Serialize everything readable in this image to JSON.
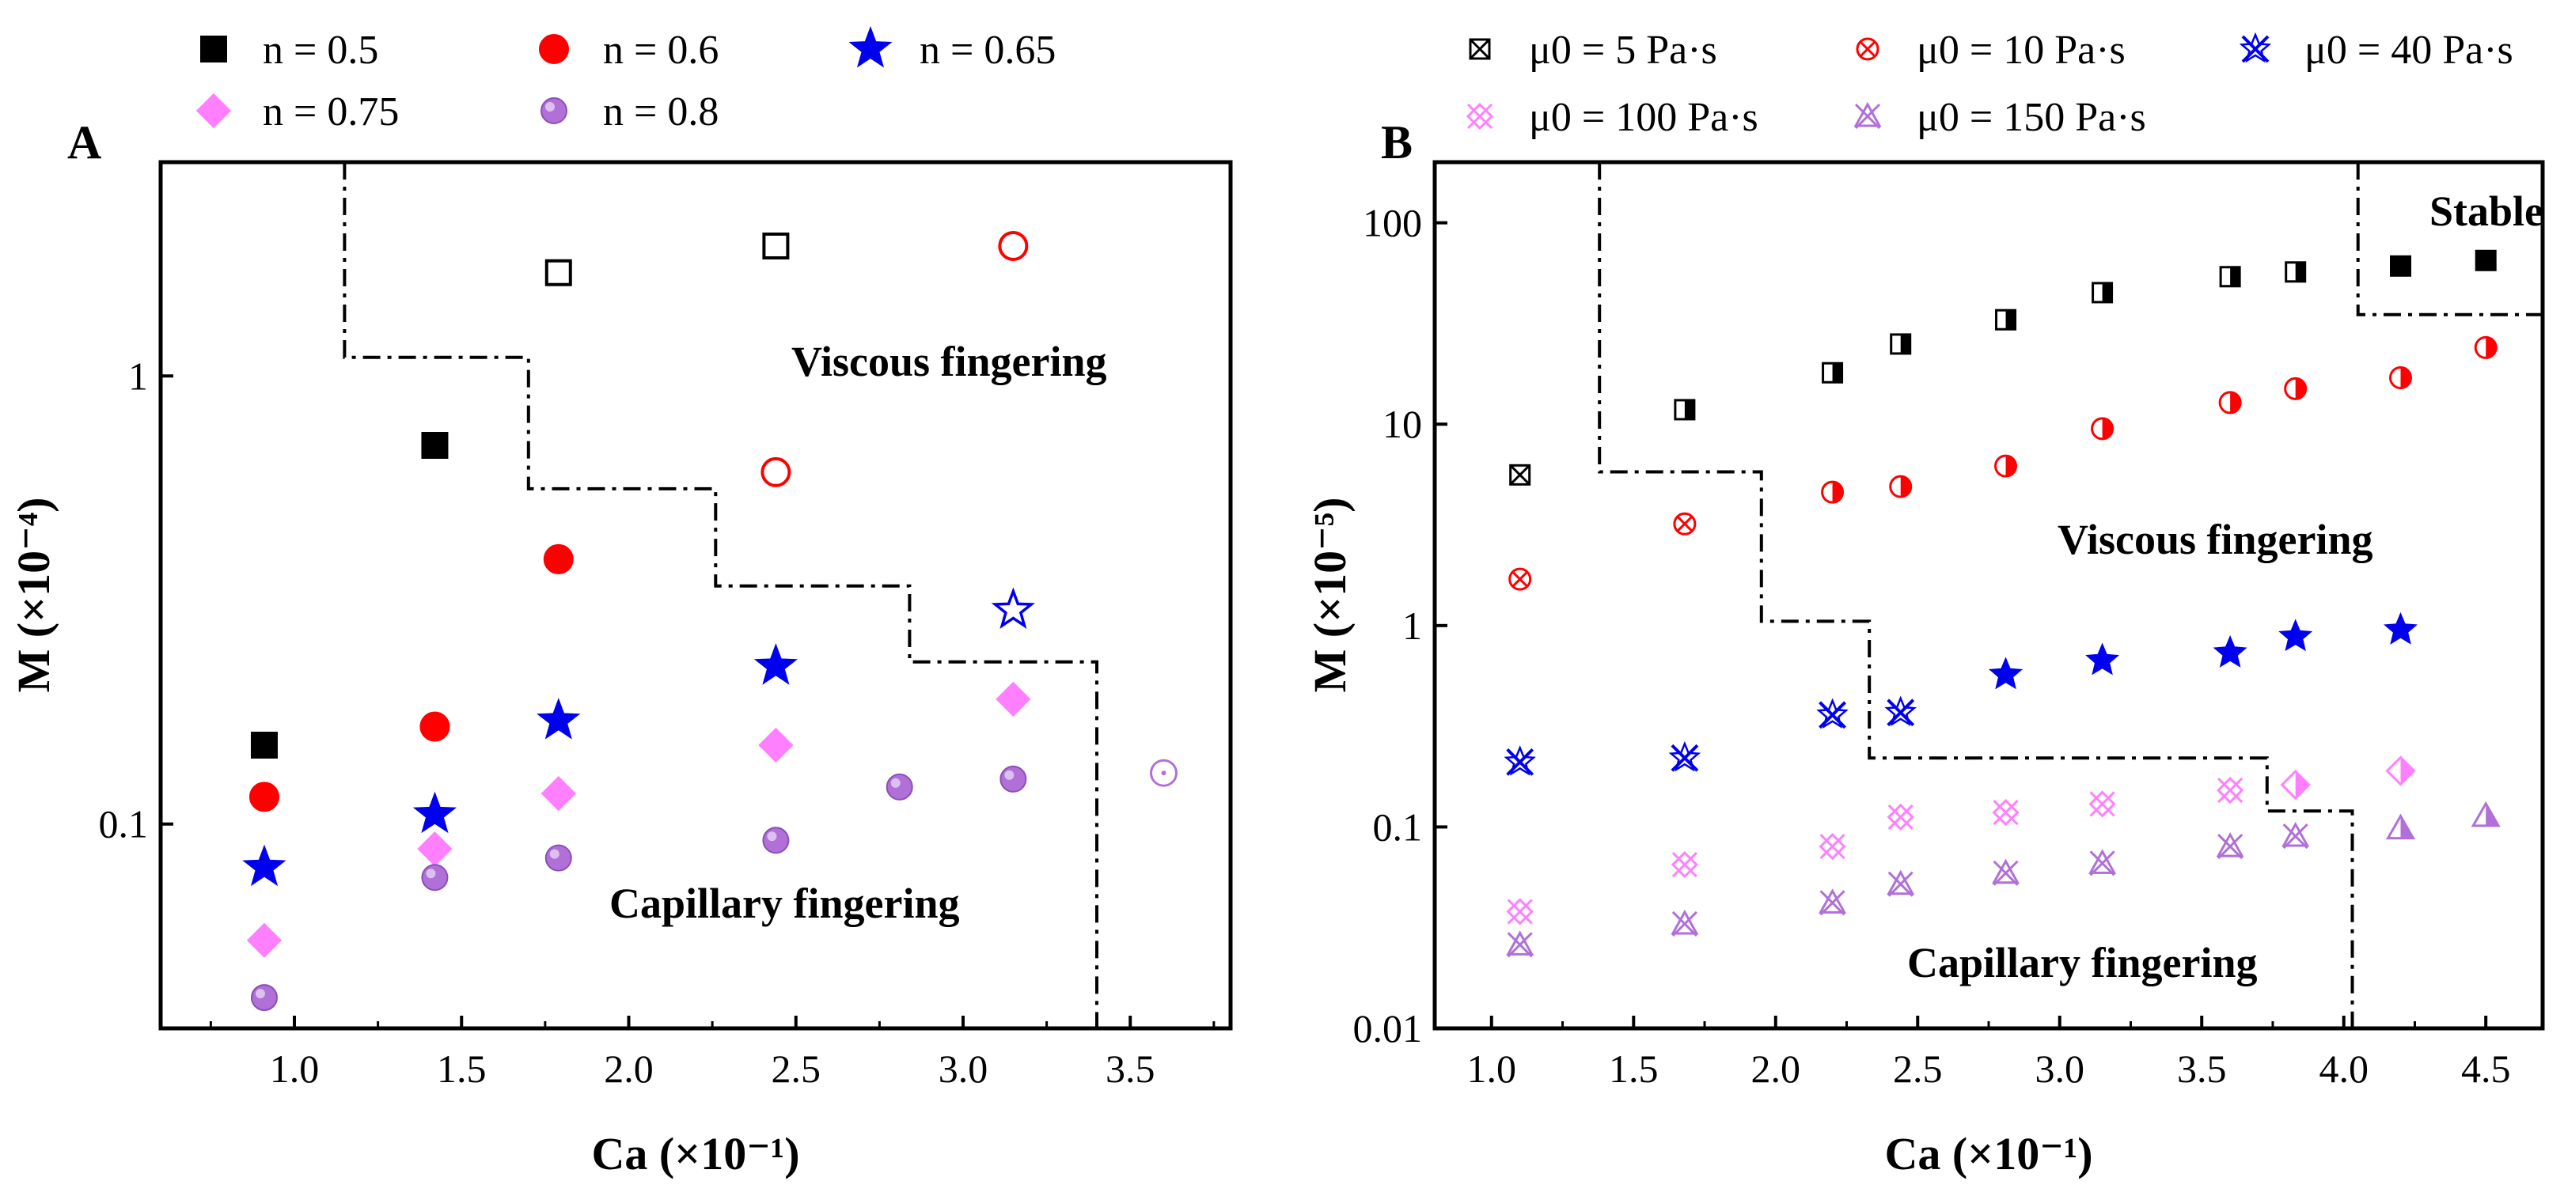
{
  "chart_data": [
    {
      "type": "scatter",
      "panel": "A",
      "xlabel": "Ca (×10⁻¹)",
      "ylabel": "M (×10⁻⁴)",
      "xlim": [
        0.6,
        3.8
      ],
      "ylim": [
        0.035,
        3.0
      ],
      "yscale": "log",
      "x_ticks": [
        "1.0",
        "1.5",
        "2.0",
        "2.5",
        "3.0",
        "3.5"
      ],
      "y_ticks": [
        "0.1",
        "1"
      ],
      "grid": false,
      "legend_position": "top",
      "annotations": [
        "Viscous fingering",
        "Capillary fingering"
      ],
      "boundary": [
        [
          1.15,
          3.0
        ],
        [
          1.15,
          1.1
        ],
        [
          1.7,
          1.1
        ],
        [
          1.7,
          0.56
        ],
        [
          2.26,
          0.56
        ],
        [
          2.26,
          0.34
        ],
        [
          2.84,
          0.34
        ],
        [
          2.84,
          0.23
        ],
        [
          3.4,
          0.23
        ],
        [
          3.4,
          0.035
        ]
      ],
      "series": [
        {
          "name": "n = 0.5",
          "marker": "square",
          "color": "#000000",
          "points": [
            [
              0.91,
              0.15
            ],
            [
              1.42,
              0.7
            ],
            [
              1.79,
              1.7
            ],
            [
              2.44,
              1.95
            ]
          ],
          "filled": [
            true,
            true,
            false,
            false
          ]
        },
        {
          "name": "n = 0.6",
          "marker": "circle",
          "color": "#ff0000",
          "points": [
            [
              0.91,
              0.115
            ],
            [
              1.42,
              0.165
            ],
            [
              1.79,
              0.39
            ],
            [
              2.44,
              0.61
            ],
            [
              3.15,
              1.95
            ]
          ],
          "filled": [
            true,
            true,
            true,
            false,
            false
          ]
        },
        {
          "name": "n = 0.65",
          "marker": "star",
          "color": "#0000ee",
          "points": [
            [
              0.91,
              0.08
            ],
            [
              1.42,
              0.105
            ],
            [
              1.79,
              0.17
            ],
            [
              2.44,
              0.225
            ],
            [
              3.15,
              0.3
            ]
          ],
          "filled": [
            true,
            true,
            true,
            true,
            false
          ]
        },
        {
          "name": "n = 0.75",
          "marker": "diamond",
          "color": "#ff80ff",
          "points": [
            [
              0.91,
              0.055
            ],
            [
              1.42,
              0.088
            ],
            [
              1.79,
              0.117
            ],
            [
              2.44,
              0.15
            ],
            [
              3.15,
              0.19
            ]
          ],
          "filled": [
            true,
            true,
            true,
            true,
            true
          ]
        },
        {
          "name": "n = 0.8",
          "marker": "sphere",
          "color": "#b070d8",
          "points": [
            [
              0.91,
              0.041
            ],
            [
              1.42,
              0.076
            ],
            [
              1.79,
              0.084
            ],
            [
              2.44,
              0.092
            ],
            [
              2.81,
              0.121
            ],
            [
              3.15,
              0.126
            ],
            [
              3.6,
              0.13
            ]
          ],
          "filled": [
            true,
            true,
            true,
            true,
            true,
            true,
            false
          ]
        }
      ]
    },
    {
      "type": "scatter",
      "panel": "B",
      "xlabel": "Ca (×10⁻¹)",
      "ylabel": "M (×10⁻⁵)",
      "xlim": [
        0.8,
        4.7
      ],
      "ylim": [
        0.01,
        200
      ],
      "yscale": "log",
      "x_ticks": [
        "1.0",
        "1.5",
        "2.0",
        "2.5",
        "3.0",
        "3.5",
        "4.0",
        "4.5"
      ],
      "y_ticks": [
        "0.01",
        "0.1",
        "1",
        "10",
        "100"
      ],
      "grid": false,
      "legend_position": "top",
      "annotations": [
        "Stable",
        "Viscous fingering",
        "Capillary fingering"
      ],
      "boundary_stable": [
        [
          4.05,
          200
        ],
        [
          4.05,
          35
        ],
        [
          4.7,
          35
        ]
      ],
      "boundary_capillary": [
        [
          1.38,
          200
        ],
        [
          1.38,
          5.8
        ],
        [
          1.95,
          5.8
        ],
        [
          1.95,
          1.05
        ],
        [
          2.33,
          1.05
        ],
        [
          2.33,
          0.22
        ],
        [
          3.73,
          0.22
        ],
        [
          3.73,
          0.12
        ],
        [
          4.03,
          0.12
        ],
        [
          4.03,
          0.01
        ]
      ],
      "series": [
        {
          "name": "μ0 = 5 Pa·s",
          "marker": "square-x",
          "color": "#000000",
          "points": [
            [
              1.1,
              5.6
            ],
            [
              1.68,
              11.8
            ],
            [
              2.2,
              18
            ],
            [
              2.44,
              25
            ],
            [
              2.81,
              33
            ],
            [
              3.15,
              45
            ],
            [
              3.6,
              54
            ],
            [
              3.83,
              57
            ],
            [
              4.2,
              61
            ],
            [
              4.5,
              65
            ]
          ],
          "style": [
            "cross",
            "half",
            "half",
            "half",
            "half",
            "half",
            "half",
            "half",
            "full",
            "full"
          ]
        },
        {
          "name": "μ0 = 10 Pa·s",
          "marker": "circle-x",
          "color": "#ff0000",
          "points": [
            [
              1.1,
              1.7
            ],
            [
              1.68,
              3.2
            ],
            [
              2.2,
              4.6
            ],
            [
              2.44,
              4.9
            ],
            [
              2.81,
              6.2
            ],
            [
              3.15,
              9.5
            ],
            [
              3.6,
              12.8
            ],
            [
              3.83,
              15
            ],
            [
              4.2,
              17
            ],
            [
              4.5,
              24
            ]
          ],
          "style": [
            "cross",
            "cross",
            "half",
            "half",
            "half",
            "half",
            "half",
            "half",
            "half",
            "half"
          ]
        },
        {
          "name": "μ0 = 40 Pa·s",
          "marker": "star-x",
          "color": "#0000ee",
          "points": [
            [
              1.1,
              0.21
            ],
            [
              1.68,
              0.22
            ],
            [
              2.2,
              0.36
            ],
            [
              2.44,
              0.37
            ],
            [
              2.81,
              0.57
            ],
            [
              3.15,
              0.67
            ],
            [
              3.6,
              0.73
            ],
            [
              3.83,
              0.88
            ],
            [
              4.2,
              0.95
            ]
          ],
          "style": [
            "cross",
            "cross",
            "cross",
            "cross",
            "star",
            "star",
            "star",
            "star",
            "star"
          ]
        },
        {
          "name": "μ0 = 100 Pa·s",
          "marker": "diamond-x",
          "color": "#ff80ff",
          "points": [
            [
              1.1,
              0.038
            ],
            [
              1.68,
              0.065
            ],
            [
              2.2,
              0.08
            ],
            [
              2.44,
              0.112
            ],
            [
              2.81,
              0.118
            ],
            [
              3.15,
              0.13
            ],
            [
              3.6,
              0.152
            ],
            [
              3.83,
              0.162
            ],
            [
              4.2,
              0.19
            ]
          ],
          "style": [
            "cross",
            "cross",
            "cross",
            "cross",
            "cross",
            "cross",
            "cross",
            "half",
            "half"
          ]
        },
        {
          "name": "μ0 = 150 Pa·s",
          "marker": "triangle-x",
          "color": "#b070d8",
          "points": [
            [
              1.1,
              0.026
            ],
            [
              1.68,
              0.033
            ],
            [
              2.2,
              0.042
            ],
            [
              2.44,
              0.052
            ],
            [
              2.81,
              0.059
            ],
            [
              3.15,
              0.066
            ],
            [
              3.6,
              0.08
            ],
            [
              3.83,
              0.09
            ],
            [
              4.2,
              0.098
            ],
            [
              4.5,
              0.113
            ]
          ],
          "style": [
            "cross",
            "cross",
            "cross",
            "cross",
            "cross",
            "cross",
            "cross",
            "cross",
            "half",
            "half"
          ]
        }
      ]
    }
  ]
}
